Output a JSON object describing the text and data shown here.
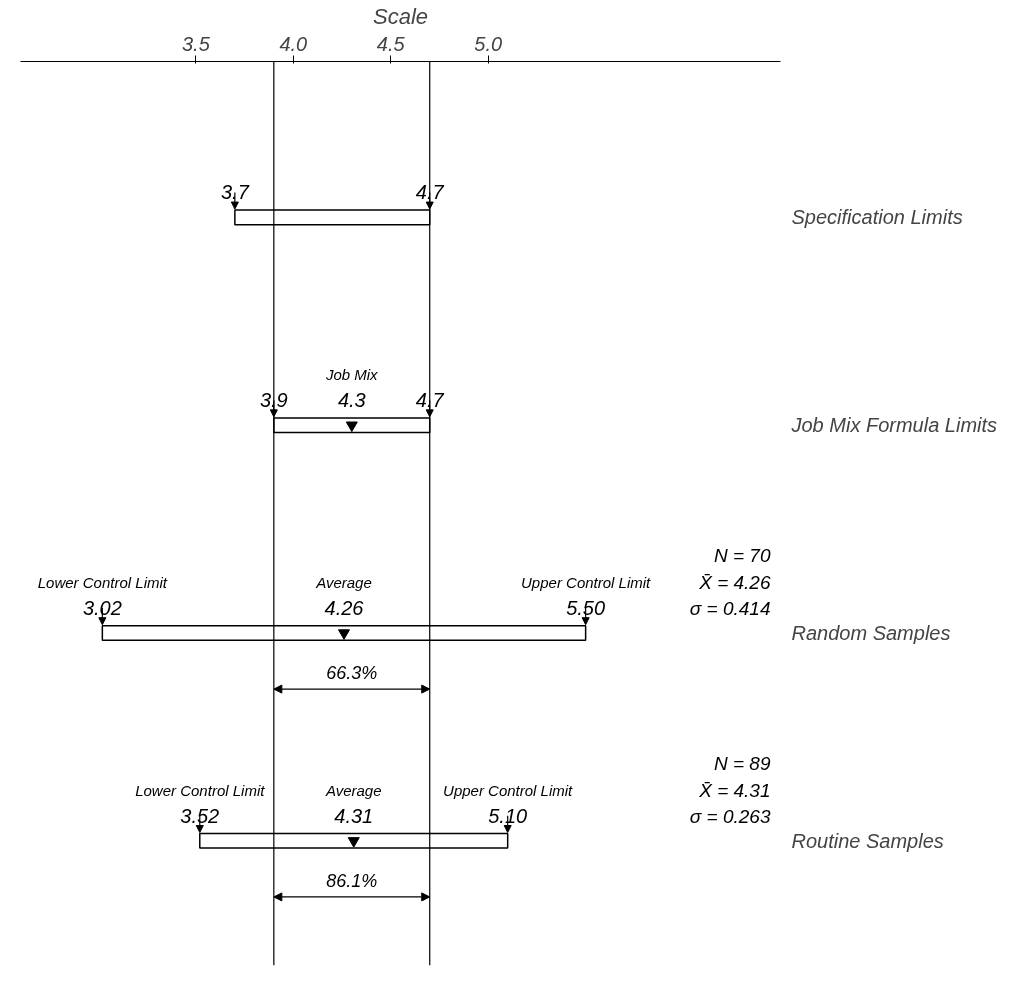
{
  "chart_data": {
    "type": "bar",
    "orientation": "horizontal",
    "xlabel": "Scale",
    "categories": [
      "Specification Limits",
      "Job Mix Formula Limits",
      "Random Samples",
      "Routine Samples"
    ],
    "base": [
      3.7,
      3.9,
      3.02,
      3.52
    ],
    "values": [
      1.0,
      0.8,
      2.48,
      1.58
    ],
    "color": "#000000",
    "series": [
      {
        "type": "scatter",
        "marker": "triangle",
        "color": "#000000",
        "x": [
          "Job Mix Formula Limits",
          "Random Samples",
          "Routine Samples"
        ],
        "values": [
          4.3,
          4.26,
          4.31
        ]
      }
    ],
    "xlim": [
      2.6,
      6.5
    ],
    "xticks": [
      {
        "value": 3.5,
        "label": "3.5"
      },
      {
        "value": 4.0,
        "label": "4.0"
      },
      {
        "value": 4.5,
        "label": "4.5"
      },
      {
        "value": 5.0,
        "label": "5.0"
      }
    ],
    "ref_lines": [
      {
        "axis": "x",
        "value": 3.9
      },
      {
        "axis": "x",
        "value": 4.7
      }
    ],
    "annotations": [
      {
        "text": "3.7",
        "x": 3.7,
        "y": "Specification Limits"
      },
      {
        "text": "4.7",
        "x": 4.7,
        "y": "Specification Limits"
      },
      {
        "text": "3.9",
        "x": 3.9,
        "y": "Job Mix Formula Limits"
      },
      {
        "text": "4.3",
        "x": 4.3,
        "y": "Job Mix Formula Limits"
      },
      {
        "text": "Job Mix",
        "x": 4.3,
        "y": "Job Mix Formula Limits"
      },
      {
        "text": "4.7",
        "x": 4.7,
        "y": "Job Mix Formula Limits"
      },
      {
        "text": "3.02",
        "x": 3.02,
        "y": "Random Samples"
      },
      {
        "text": "Lower Control Limit",
        "x": 3.02,
        "y": "Random Samples"
      },
      {
        "text": "4.26",
        "x": 4.26,
        "y": "Random Samples"
      },
      {
        "text": "Average",
        "x": 4.26,
        "y": "Random Samples"
      },
      {
        "text": "5.50",
        "x": 5.5,
        "y": "Random Samples"
      },
      {
        "text": "Upper Control Limit",
        "x": 5.5,
        "y": "Random Samples"
      },
      {
        "text": "3.52",
        "x": 3.52,
        "y": "Routine Samples"
      },
      {
        "text": "Lower Control Limit",
        "x": 3.52,
        "y": "Routine Samples"
      },
      {
        "text": "4.31",
        "x": 4.31,
        "y": "Routine Samples"
      },
      {
        "text": "Average",
        "x": 4.31,
        "y": "Routine Samples"
      },
      {
        "text": "5.10",
        "x": 5.1,
        "y": "Routine Samples"
      },
      {
        "text": "Upper Control Limit",
        "x": 5.1,
        "y": "Routine Samples"
      },
      "66.3%",
      "N = 70\nX̄ = 4.26\nσ = 0.414",
      "86.1%",
      "N = 89\nX̄ = 4.31\nσ = 0.263"
    ]
  }
}
